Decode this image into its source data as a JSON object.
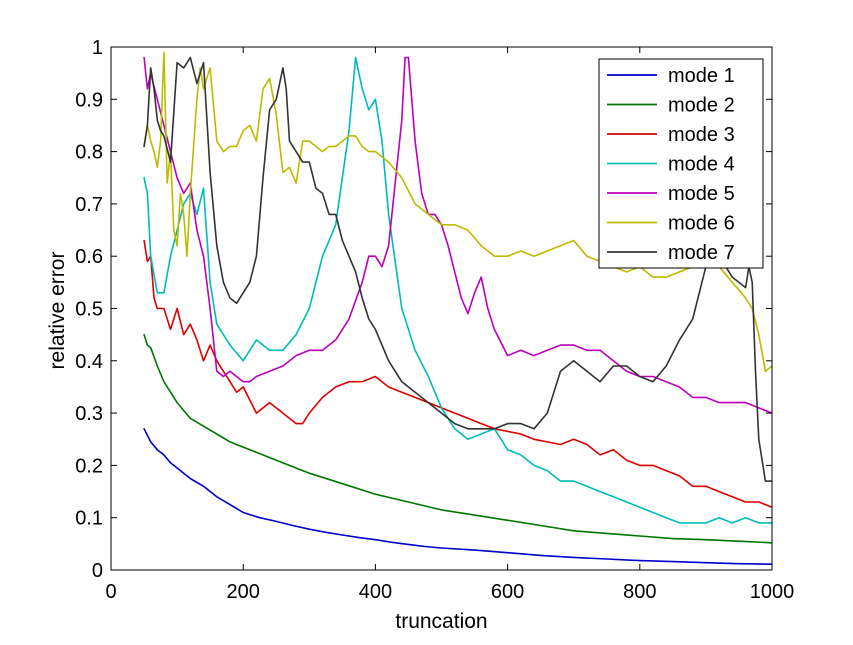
{
  "chart_data": {
    "type": "line",
    "title": "",
    "xlabel": "truncation",
    "ylabel": "relative error",
    "xlim": [
      0,
      1000
    ],
    "ylim": [
      0,
      1
    ],
    "xticks": [
      0,
      200,
      400,
      600,
      800,
      1000
    ],
    "yticks": [
      0,
      0.1,
      0.2,
      0.3,
      0.4,
      0.5,
      0.6,
      0.7,
      0.8,
      0.9,
      1
    ],
    "grid": false,
    "legend_position": "top-right",
    "series": [
      {
        "name": "mode 1",
        "color": "#0000cc",
        "x": [
          50,
          60,
          70,
          80,
          90,
          100,
          120,
          140,
          160,
          180,
          200,
          225,
          250,
          275,
          300,
          325,
          350,
          375,
          400,
          425,
          450,
          475,
          500,
          550,
          600,
          650,
          700,
          750,
          800,
          850,
          900,
          950,
          1000
        ],
        "y": [
          0.27,
          0.245,
          0.23,
          0.22,
          0.205,
          0.195,
          0.175,
          0.16,
          0.14,
          0.125,
          0.11,
          0.1,
          0.093,
          0.085,
          0.078,
          0.072,
          0.067,
          0.062,
          0.058,
          0.053,
          0.049,
          0.045,
          0.042,
          0.038,
          0.033,
          0.028,
          0.024,
          0.021,
          0.018,
          0.016,
          0.014,
          0.012,
          0.011
        ]
      },
      {
        "name": "mode 2",
        "color": "#007700",
        "x": [
          50,
          55,
          60,
          70,
          80,
          100,
          120,
          140,
          160,
          180,
          200,
          250,
          300,
          350,
          400,
          450,
          500,
          550,
          600,
          650,
          700,
          750,
          800,
          850,
          900,
          950,
          1000
        ],
        "y": [
          0.45,
          0.43,
          0.425,
          0.39,
          0.36,
          0.32,
          0.29,
          0.275,
          0.26,
          0.245,
          0.235,
          0.21,
          0.185,
          0.165,
          0.145,
          0.13,
          0.115,
          0.105,
          0.095,
          0.085,
          0.075,
          0.07,
          0.065,
          0.06,
          0.058,
          0.055,
          0.052
        ]
      },
      {
        "name": "mode 3",
        "color": "#dd0000",
        "x": [
          50,
          55,
          60,
          65,
          70,
          80,
          90,
          100,
          110,
          120,
          130,
          140,
          150,
          160,
          170,
          180,
          190,
          200,
          220,
          240,
          260,
          280,
          290,
          300,
          320,
          340,
          360,
          380,
          400,
          420,
          440,
          460,
          480,
          500,
          520,
          540,
          560,
          580,
          600,
          620,
          640,
          660,
          680,
          700,
          720,
          740,
          760,
          780,
          800,
          820,
          840,
          860,
          880,
          900,
          920,
          940,
          960,
          980,
          1000
        ],
        "y": [
          0.63,
          0.59,
          0.6,
          0.52,
          0.5,
          0.5,
          0.46,
          0.5,
          0.45,
          0.47,
          0.44,
          0.4,
          0.43,
          0.4,
          0.38,
          0.36,
          0.34,
          0.35,
          0.3,
          0.32,
          0.3,
          0.28,
          0.28,
          0.3,
          0.33,
          0.35,
          0.36,
          0.36,
          0.37,
          0.35,
          0.34,
          0.33,
          0.32,
          0.31,
          0.3,
          0.29,
          0.28,
          0.27,
          0.265,
          0.26,
          0.25,
          0.245,
          0.24,
          0.25,
          0.24,
          0.22,
          0.23,
          0.21,
          0.2,
          0.2,
          0.19,
          0.18,
          0.16,
          0.16,
          0.15,
          0.14,
          0.13,
          0.13,
          0.12
        ]
      },
      {
        "name": "mode 4",
        "color": "#00bbbb",
        "x": [
          50,
          55,
          60,
          70,
          80,
          90,
          100,
          110,
          120,
          130,
          140,
          150,
          160,
          180,
          200,
          220,
          240,
          260,
          280,
          300,
          320,
          340,
          360,
          370,
          380,
          390,
          400,
          410,
          420,
          440,
          460,
          480,
          500,
          520,
          540,
          560,
          580,
          600,
          620,
          640,
          660,
          680,
          700,
          720,
          740,
          760,
          780,
          800,
          820,
          840,
          860,
          880,
          900,
          920,
          940,
          960,
          980,
          1000
        ],
        "y": [
          0.75,
          0.72,
          0.6,
          0.53,
          0.53,
          0.6,
          0.65,
          0.7,
          0.72,
          0.68,
          0.73,
          0.55,
          0.47,
          0.43,
          0.4,
          0.44,
          0.42,
          0.42,
          0.45,
          0.5,
          0.6,
          0.66,
          0.84,
          0.98,
          0.92,
          0.88,
          0.9,
          0.82,
          0.68,
          0.5,
          0.42,
          0.37,
          0.31,
          0.27,
          0.25,
          0.26,
          0.27,
          0.23,
          0.22,
          0.2,
          0.19,
          0.17,
          0.17,
          0.16,
          0.15,
          0.14,
          0.13,
          0.12,
          0.11,
          0.1,
          0.09,
          0.09,
          0.09,
          0.1,
          0.09,
          0.1,
          0.09,
          0.09
        ]
      },
      {
        "name": "mode 5",
        "color": "#bb00bb",
        "x": [
          50,
          55,
          60,
          70,
          80,
          90,
          100,
          110,
          120,
          130,
          140,
          150,
          160,
          170,
          180,
          190,
          200,
          210,
          220,
          240,
          260,
          280,
          300,
          320,
          340,
          360,
          380,
          390,
          400,
          410,
          420,
          430,
          440,
          445,
          450,
          460,
          470,
          480,
          490,
          500,
          510,
          520,
          530,
          540,
          550,
          560,
          570,
          580,
          600,
          620,
          640,
          660,
          680,
          700,
          720,
          740,
          760,
          780,
          800,
          820,
          840,
          860,
          880,
          900,
          920,
          940,
          960,
          980,
          1000
        ],
        "y": [
          0.98,
          0.92,
          0.95,
          0.9,
          0.85,
          0.8,
          0.75,
          0.72,
          0.74,
          0.65,
          0.6,
          0.5,
          0.38,
          0.37,
          0.38,
          0.37,
          0.36,
          0.36,
          0.37,
          0.38,
          0.39,
          0.41,
          0.42,
          0.42,
          0.44,
          0.48,
          0.55,
          0.6,
          0.6,
          0.58,
          0.62,
          0.74,
          0.86,
          0.98,
          0.98,
          0.82,
          0.72,
          0.68,
          0.68,
          0.66,
          0.62,
          0.57,
          0.52,
          0.49,
          0.53,
          0.56,
          0.5,
          0.46,
          0.41,
          0.42,
          0.41,
          0.42,
          0.43,
          0.43,
          0.42,
          0.42,
          0.4,
          0.38,
          0.37,
          0.37,
          0.36,
          0.35,
          0.33,
          0.33,
          0.32,
          0.32,
          0.32,
          0.31,
          0.3
        ]
      },
      {
        "name": "mode 6",
        "color": "#bbbb00",
        "x": [
          50,
          55,
          60,
          65,
          70,
          75,
          80,
          85,
          90,
          95,
          100,
          105,
          110,
          115,
          120,
          130,
          135,
          140,
          150,
          160,
          170,
          180,
          190,
          200,
          210,
          220,
          230,
          240,
          250,
          260,
          270,
          280,
          290,
          300,
          310,
          320,
          330,
          340,
          350,
          360,
          370,
          380,
          390,
          400,
          420,
          440,
          460,
          480,
          500,
          520,
          540,
          560,
          580,
          600,
          620,
          640,
          660,
          680,
          700,
          720,
          740,
          760,
          780,
          800,
          820,
          840,
          860,
          880,
          900,
          920,
          940,
          960,
          970,
          980,
          990,
          1000
        ],
        "y": [
          0.81,
          0.85,
          0.82,
          0.8,
          0.77,
          0.82,
          0.99,
          0.74,
          0.8,
          0.65,
          0.62,
          0.72,
          0.68,
          0.6,
          0.72,
          0.9,
          0.96,
          0.92,
          0.96,
          0.82,
          0.8,
          0.81,
          0.81,
          0.84,
          0.85,
          0.82,
          0.92,
          0.94,
          0.87,
          0.76,
          0.77,
          0.74,
          0.82,
          0.82,
          0.81,
          0.8,
          0.81,
          0.81,
          0.82,
          0.83,
          0.83,
          0.81,
          0.8,
          0.8,
          0.78,
          0.75,
          0.7,
          0.68,
          0.66,
          0.66,
          0.65,
          0.62,
          0.6,
          0.6,
          0.61,
          0.6,
          0.61,
          0.62,
          0.63,
          0.6,
          0.59,
          0.58,
          0.57,
          0.58,
          0.56,
          0.56,
          0.57,
          0.58,
          0.6,
          0.58,
          0.55,
          0.52,
          0.5,
          0.45,
          0.38,
          0.39
        ]
      },
      {
        "name": "mode 7",
        "color": "#333333",
        "x": [
          50,
          55,
          60,
          65,
          70,
          75,
          80,
          90,
          100,
          110,
          120,
          130,
          140,
          150,
          160,
          170,
          180,
          190,
          200,
          210,
          220,
          230,
          240,
          250,
          260,
          265,
          270,
          280,
          290,
          300,
          310,
          320,
          330,
          340,
          350,
          360,
          370,
          380,
          390,
          400,
          420,
          440,
          460,
          480,
          500,
          520,
          540,
          560,
          580,
          600,
          620,
          640,
          660,
          680,
          700,
          720,
          740,
          760,
          780,
          800,
          820,
          840,
          860,
          880,
          900,
          920,
          940,
          960,
          965,
          970,
          975,
          980,
          990,
          1000
        ],
        "y": [
          0.81,
          0.85,
          0.96,
          0.92,
          0.86,
          0.84,
          0.83,
          0.78,
          0.97,
          0.96,
          0.98,
          0.93,
          0.97,
          0.76,
          0.62,
          0.55,
          0.52,
          0.51,
          0.53,
          0.55,
          0.6,
          0.75,
          0.88,
          0.9,
          0.96,
          0.92,
          0.82,
          0.8,
          0.78,
          0.78,
          0.73,
          0.72,
          0.68,
          0.68,
          0.63,
          0.6,
          0.57,
          0.52,
          0.48,
          0.46,
          0.4,
          0.36,
          0.34,
          0.32,
          0.3,
          0.28,
          0.27,
          0.27,
          0.27,
          0.28,
          0.28,
          0.27,
          0.3,
          0.38,
          0.4,
          0.38,
          0.36,
          0.39,
          0.39,
          0.37,
          0.36,
          0.39,
          0.44,
          0.48,
          0.58,
          0.6,
          0.56,
          0.54,
          0.58,
          0.55,
          0.38,
          0.25,
          0.17,
          0.17
        ]
      }
    ]
  }
}
